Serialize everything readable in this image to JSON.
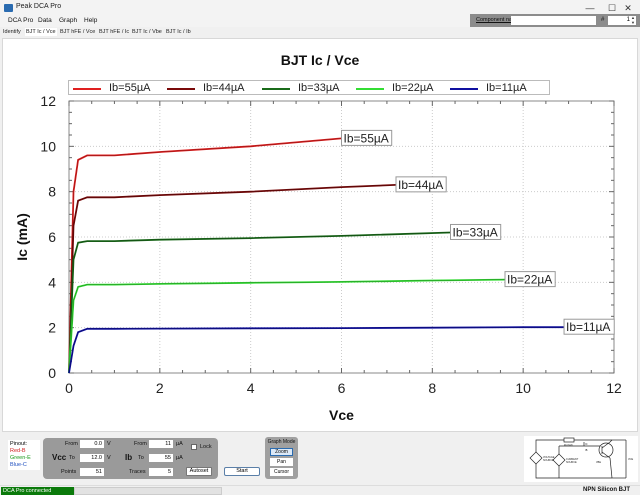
{
  "window": {
    "title": "Peak DCA Pro",
    "minimize": "—",
    "maximize": "☐",
    "close": "✕"
  },
  "menu": [
    "DCA Pro",
    "Data",
    "Graph",
    "Help"
  ],
  "component": {
    "label": "Component name",
    "value": "",
    "hash": "#",
    "number": "1"
  },
  "tabs": [
    {
      "label": "Identify",
      "active": false
    },
    {
      "label": "BJT Ic / Vce",
      "active": true
    },
    {
      "label": "BJT hFE / Vce",
      "active": false
    },
    {
      "label": "BJT hFE / Ic",
      "active": false
    },
    {
      "label": "BJT Ic / Vbe",
      "active": false
    },
    {
      "label": "BJT Ic / Ib",
      "active": false
    }
  ],
  "chart_data": {
    "type": "line",
    "title": "BJT Ic / Vce",
    "xlabel": "Vce",
    "ylabel": "Ic (mA)",
    "xlim": [
      0,
      12
    ],
    "ylim": [
      0,
      12
    ],
    "xticks": [
      0,
      2,
      4,
      6,
      8,
      10,
      12
    ],
    "yticks": [
      0,
      2,
      4,
      6,
      8,
      10,
      12
    ],
    "grid": true,
    "legend_position": "top",
    "series": [
      {
        "name": "Ib=55µA",
        "color": "#e02020",
        "x": [
          0,
          0.1,
          0.2,
          0.4,
          1,
          2,
          4,
          6
        ],
        "y": [
          0,
          8.0,
          9.4,
          9.6,
          9.6,
          9.75,
          10.0,
          10.35
        ]
      },
      {
        "name": "Ib=44µA",
        "color": "#7a0a0a",
        "x": [
          0,
          0.1,
          0.2,
          0.4,
          1,
          2,
          4,
          6,
          7.2
        ],
        "y": [
          0,
          6.5,
          7.6,
          7.75,
          7.75,
          7.85,
          8.0,
          8.2,
          8.3
        ]
      },
      {
        "name": "Ib=33µA",
        "color": "#1a6b1a",
        "x": [
          0,
          0.1,
          0.2,
          0.4,
          1,
          2,
          4,
          6,
          8.4
        ],
        "y": [
          0,
          5.0,
          5.75,
          5.82,
          5.82,
          5.88,
          5.95,
          6.05,
          6.2
        ]
      },
      {
        "name": "Ib=22µA",
        "color": "#33dd33",
        "x": [
          0,
          0.1,
          0.2,
          0.4,
          1,
          2,
          4,
          6,
          8,
          9.6
        ],
        "y": [
          0,
          3.2,
          3.8,
          3.9,
          3.9,
          3.93,
          3.98,
          4.02,
          4.08,
          4.12
        ]
      },
      {
        "name": "Ib=11µA",
        "color": "#1010a0",
        "x": [
          0,
          0.1,
          0.2,
          0.4,
          1,
          2,
          4,
          6,
          8,
          10,
          10.9
        ],
        "y": [
          0,
          1.2,
          1.8,
          1.95,
          1.95,
          1.96,
          1.97,
          1.98,
          2.0,
          2.02,
          2.02
        ]
      }
    ],
    "end_labels": [
      "Ib=55µA",
      "Ib=44µA",
      "Ib=33µA",
      "Ib=22µA",
      "Ib=11µA"
    ]
  },
  "pinout": {
    "title": "Pinout:",
    "lines": [
      {
        "text": "Red-B",
        "color": "#d02020"
      },
      {
        "text": "Green-E",
        "color": "#1a9a1a"
      },
      {
        "text": "Blue-C",
        "color": "#2050c0"
      }
    ]
  },
  "controls": {
    "vcc_label": "Vcc",
    "ib_label": "Ib",
    "from_label": "From",
    "to_label": "To",
    "points_label": "Points",
    "traces_label": "Traces",
    "vcc_from": "0.0",
    "vcc_to": "12.0",
    "vcc_unit": "V",
    "ib_from": "11",
    "ib_to": "55",
    "ib_unit": "µA",
    "points": "51",
    "traces": "5",
    "lock_label": "Lock",
    "autoset_label": "Autoset"
  },
  "start_label": "Start",
  "graph_mode": {
    "title": "Graph Mode",
    "buttons": [
      "Zoom",
      "Pan",
      "Cursor"
    ],
    "active": "Zoom"
  },
  "schematic": {
    "labels": [
      "RLOAD",
      "IC",
      "IB",
      "VOLTAGE SOURCE",
      "CURRENT SOURCE",
      "VBE",
      "VCE"
    ]
  },
  "status": {
    "connection": "DCA Pro connected",
    "device": "NPN Silicon BJT"
  }
}
